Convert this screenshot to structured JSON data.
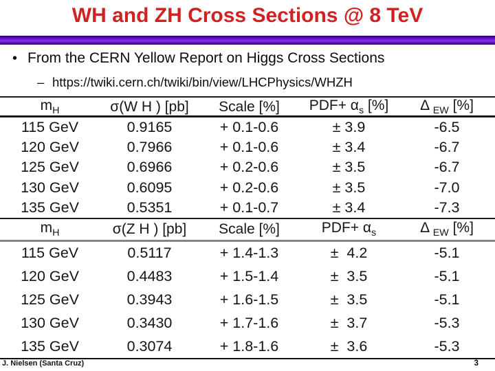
{
  "slide": {
    "title": "WH and ZH Cross Sections @ 8 TeV",
    "bullet_marker": "•",
    "bullet": "From the CERN Yellow Report on Higgs Cross Sections",
    "sub_bullet_marker": "–",
    "sub_bullet_url": "https://twiki.cern.ch/twiki/bin/view/LHCPhysics/WHZH"
  },
  "colors": {
    "title_red": "#cf2323",
    "divider_purple": "#5a0fc8"
  },
  "tables": [
    {
      "name": "WH cross sections at 8 TeV",
      "header": {
        "mass_base": "m",
        "mass_sub": "H",
        "sigma": "σ(W H ) [pb]",
        "scale": "Scale [%]",
        "pdf_pre": "PDF+ α",
        "pdf_sub": "s",
        "pdf_post": " [%]",
        "ew_pre": "Δ ",
        "ew_sub": "EW",
        "ew_post": " [%]"
      },
      "rows": [
        {
          "mass": "115 GeV",
          "sigma": "0.9165",
          "scale": "+ 0.1-0.6",
          "pdf": "± 3.9",
          "ew": "-6.5"
        },
        {
          "mass": "120 GeV",
          "sigma": "0.7966",
          "scale": "+ 0.1-0.6",
          "pdf": "± 3.4",
          "ew": "-6.7"
        },
        {
          "mass": "125 GeV",
          "sigma": "0.6966",
          "scale": "+ 0.2-0.6",
          "pdf": "± 3.5",
          "ew": "-6.7"
        },
        {
          "mass": "130 GeV",
          "sigma": "0.6095",
          "scale": "+ 0.2-0.6",
          "pdf": "± 3.5",
          "ew": "-7.0"
        },
        {
          "mass": "135 GeV",
          "sigma": "0.5351",
          "scale": "+ 0.1-0.7",
          "pdf": "± 3.4",
          "ew": "-7.3"
        }
      ]
    },
    {
      "name": "ZH cross sections at 8 TeV",
      "header": {
        "mass_base": "m",
        "mass_sub": "H",
        "sigma": "σ(Z H ) [pb]",
        "scale": "Scale [%]",
        "pdf_pre": "PDF+ α",
        "pdf_sub": "s",
        "pdf_post": "",
        "ew_pre": "Δ ",
        "ew_sub": "EW",
        "ew_post": " [%]"
      },
      "rows": [
        {
          "mass": "115 GeV",
          "sigma": "0.5117",
          "scale": "+ 1.4-1.3",
          "pdf": "±  4.2",
          "ew": "-5.1"
        },
        {
          "mass": "120 GeV",
          "sigma": "0.4483",
          "scale": "+ 1.5-1.4",
          "pdf": "±  3.5",
          "ew": "-5.1"
        },
        {
          "mass": "125 GeV",
          "sigma": "0.3943",
          "scale": "+ 1.6-1.5",
          "pdf": "±  3.5",
          "ew": "-5.1"
        },
        {
          "mass": "130 GeV",
          "sigma": "0.3430",
          "scale": "+ 1.7-1.6",
          "pdf": "±  3.7",
          "ew": "-5.3"
        },
        {
          "mass": "135 GeV",
          "sigma": "0.3074",
          "scale": "+ 1.8-1.6",
          "pdf": "±  3.6",
          "ew": "-5.3"
        }
      ]
    }
  ],
  "footer": {
    "author": "J. Nielsen (Santa Cruz)",
    "page_number": "3"
  }
}
